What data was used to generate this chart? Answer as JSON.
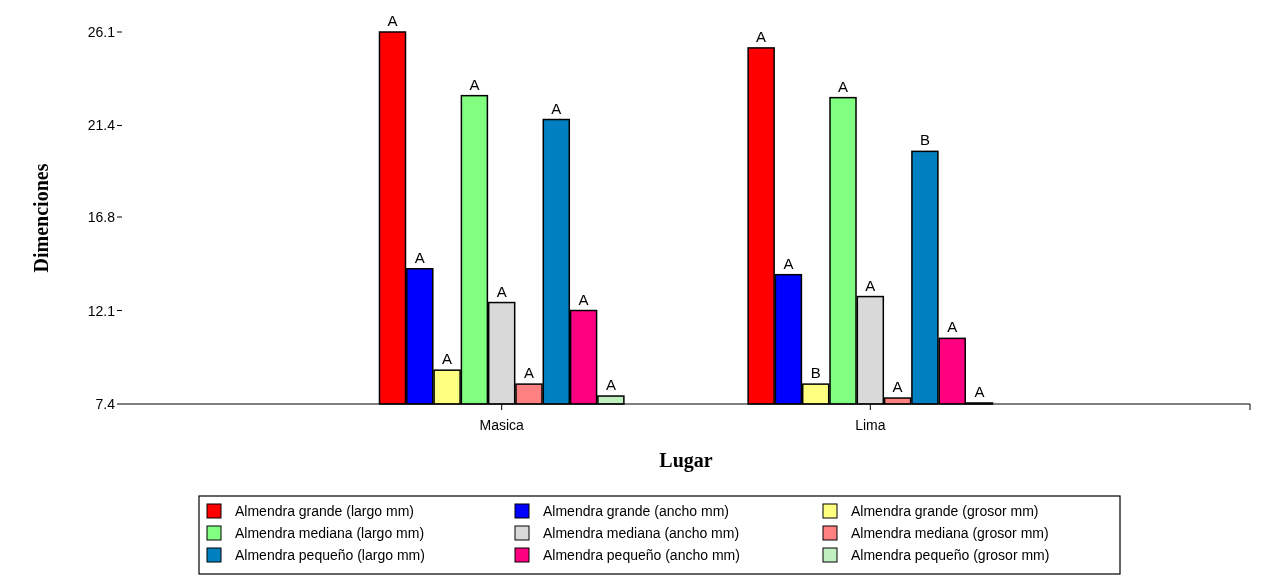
{
  "chart_data": {
    "type": "bar",
    "xlabel": "Lugar",
    "ylabel": "Dimenciones",
    "categories": [
      "Masica",
      "Lima"
    ],
    "ylim": [
      7.4,
      26.1
    ],
    "yticks": [
      7.4,
      12.1,
      16.8,
      21.4,
      26.1
    ],
    "grid": false,
    "legend": "bottom",
    "series": [
      {
        "name": "Almendra grande (largo mm)",
        "color": "#ff0000",
        "values": [
          26.1,
          25.3
        ],
        "value_labels": [
          "A",
          "A"
        ]
      },
      {
        "name": "Almendra grande (ancho mm)",
        "color": "#0000ff",
        "values": [
          14.2,
          13.9
        ],
        "value_labels": [
          "A",
          "A"
        ]
      },
      {
        "name": "Almendra grande (grosor mm)",
        "color": "#ffff80",
        "values": [
          9.1,
          8.4
        ],
        "value_labels": [
          "A",
          "B"
        ]
      },
      {
        "name": "Almendra mediana (largo mm)",
        "color": "#80ff80",
        "values": [
          22.9,
          22.8
        ],
        "value_labels": [
          "A",
          "A"
        ]
      },
      {
        "name": "Almendra mediana (ancho mm)",
        "color": "#d9d9d9",
        "values": [
          12.5,
          12.8
        ],
        "value_labels": [
          "A",
          "A"
        ]
      },
      {
        "name": "Almendra mediana (grosor mm)",
        "color": "#ff8080",
        "values": [
          8.4,
          7.7
        ],
        "value_labels": [
          "A",
          "A"
        ]
      },
      {
        "name": "Almendra pequeño (largo mm)",
        "color": "#0080c0",
        "values": [
          21.7,
          20.1
        ],
        "value_labels": [
          "A",
          "B"
        ]
      },
      {
        "name": "Almendra pequeño (ancho mm)",
        "color": "#ff0080",
        "values": [
          12.1,
          10.7
        ],
        "value_labels": [
          "A",
          "A"
        ]
      },
      {
        "name": "Almendra pequeño (grosor mm)",
        "color": "#c0f0c0",
        "values": [
          7.8,
          7.45
        ],
        "value_labels": [
          "A",
          "A"
        ]
      }
    ]
  }
}
